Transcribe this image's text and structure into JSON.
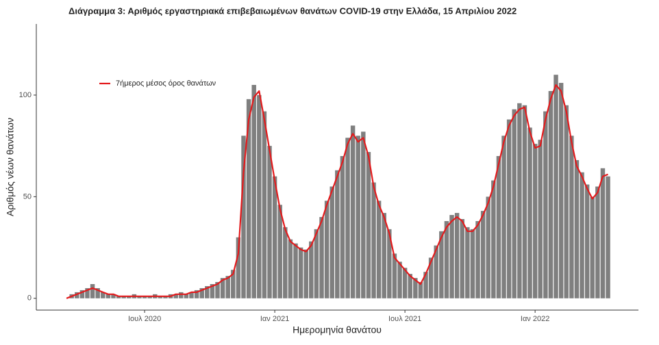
{
  "chart_data": {
    "type": "bar",
    "title": "Διάγραμμα 3: Αριθμός εργαστηριακά επιβεβαιωμένων θανάτων COVID-19 στην Ελλάδα, 15 Απριλίου 2022",
    "x_label": "Ημερομηνία θανάτου",
    "y_label": "Αριθμός νέων θανάτων",
    "x": [
      2020.2,
      2020.22,
      2020.24,
      2020.26,
      2020.28,
      2020.3,
      2020.32,
      2020.34,
      2020.36,
      2020.38,
      2020.4,
      2020.42,
      2020.44,
      2020.46,
      2020.48,
      2020.5,
      2020.52,
      2020.54,
      2020.56,
      2020.58,
      2020.6,
      2020.62,
      2020.64,
      2020.66,
      2020.68,
      2020.7,
      2020.72,
      2020.74,
      2020.76,
      2020.78,
      2020.8,
      2020.82,
      2020.84,
      2020.86,
      2020.88,
      2020.9,
      2020.92,
      2020.94,
      2020.96,
      2020.98,
      2021.0,
      2021.02,
      2021.04,
      2021.06,
      2021.08,
      2021.1,
      2021.12,
      2021.14,
      2021.16,
      2021.18,
      2021.2,
      2021.22,
      2021.24,
      2021.26,
      2021.28,
      2021.3,
      2021.32,
      2021.34,
      2021.36,
      2021.38,
      2021.4,
      2021.42,
      2021.44,
      2021.46,
      2021.48,
      2021.5,
      2021.52,
      2021.54,
      2021.56,
      2021.58,
      2021.6,
      2021.62,
      2021.64,
      2021.66,
      2021.68,
      2021.7,
      2021.72,
      2021.74,
      2021.76,
      2021.78,
      2021.8,
      2021.82,
      2021.84,
      2021.86,
      2021.88,
      2021.9,
      2021.92,
      2021.94,
      2021.96,
      2021.98,
      2022.0,
      2022.02,
      2022.04,
      2022.06,
      2022.08,
      2022.1,
      2022.12,
      2022.14,
      2022.16,
      2022.18,
      2022.2,
      2022.22,
      2022.24,
      2022.26,
      2022.28
    ],
    "series": [
      {
        "type": "bar",
        "color": "#7f7f7f",
        "values": [
          0,
          2,
          3,
          4,
          5,
          7,
          5,
          3,
          2,
          2,
          1,
          1,
          1,
          2,
          1,
          1,
          1,
          2,
          1,
          1,
          2,
          2,
          3,
          2,
          3,
          4,
          5,
          6,
          7,
          8,
          10,
          11,
          14,
          30,
          80,
          98,
          105,
          100,
          92,
          75,
          60,
          46,
          35,
          29,
          27,
          25,
          24,
          28,
          34,
          40,
          48,
          55,
          63,
          70,
          79,
          85,
          80,
          82,
          72,
          57,
          48,
          42,
          34,
          22,
          18,
          15,
          12,
          10,
          8,
          13,
          20,
          26,
          33,
          38,
          41,
          42,
          39,
          35,
          34,
          38,
          43,
          50,
          58,
          70,
          80,
          88,
          93,
          96,
          95,
          84,
          76,
          78,
          92,
          102,
          110,
          106,
          95,
          80,
          68,
          62,
          56,
          50,
          55,
          64,
          60
        ]
      },
      {
        "type": "line",
        "name": "7ήμερος μέσος όρος θανάτων",
        "color": "#e31a1c",
        "values": [
          0,
          1,
          2,
          3,
          4,
          5,
          4,
          3,
          2,
          2,
          1,
          1,
          1,
          1,
          1,
          1,
          1,
          1,
          1,
          1,
          1,
          2,
          2,
          2,
          3,
          3,
          4,
          5,
          6,
          7,
          9,
          10,
          12,
          22,
          62,
          88,
          99,
          102,
          88,
          73,
          58,
          44,
          34,
          28,
          26,
          24,
          23,
          26,
          32,
          38,
          46,
          53,
          60,
          67,
          76,
          81,
          77,
          79,
          70,
          55,
          46,
          40,
          32,
          20,
          17,
          14,
          11,
          9,
          7,
          12,
          18,
          24,
          30,
          35,
          38,
          40,
          38,
          33,
          33,
          36,
          41,
          47,
          55,
          66,
          77,
          85,
          90,
          93,
          94,
          82,
          74,
          75,
          88,
          98,
          105,
          102,
          92,
          77,
          65,
          60,
          54,
          49,
          52,
          60,
          61
        ]
      }
    ],
    "xlim": [
      2020.084,
      2022.397
    ],
    "xticks": [
      {
        "value": 2020.5,
        "label": "Ιουλ 2020"
      },
      {
        "value": 2021.0,
        "label": "Ιαν 2021"
      },
      {
        "value": 2021.5,
        "label": "Ιουλ 2021"
      },
      {
        "value": 2022.0,
        "label": "Ιαν 2022"
      }
    ],
    "ylim": [
      -5.8,
      135
    ],
    "yticks": [
      0,
      50,
      100
    ],
    "grid": false,
    "legend": "top-left"
  }
}
